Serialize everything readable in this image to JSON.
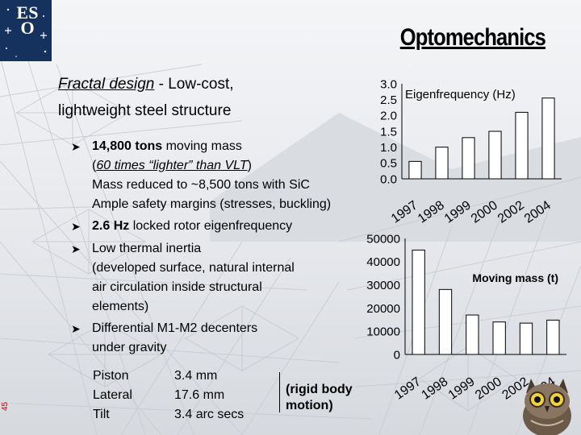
{
  "slide": {
    "title": "Optomechanics",
    "logo_text": "ES O",
    "slide_number": "45"
  },
  "intro": {
    "heading": "Fractal design",
    "heading_rest": " - Low-cost,",
    "line2": "lightweight steel structure"
  },
  "bullets": [
    {
      "bold": "14,800 tons",
      "text": " moving mass",
      "sub1_open": "(",
      "sub1_link": "60 times “lighter” than VLT",
      "sub1_close": ")",
      "sub2": "Mass reduced to ~8,500 tons with SiC",
      "sub3": "Ample safety margins (stresses, buckling)"
    },
    {
      "bold": "2.6 Hz",
      "text": " locked rotor eigenfrequency"
    },
    {
      "text": "Low thermal inertia",
      "sub1": "(developed surface, natural internal",
      "sub2": "air circulation inside structural",
      "sub3": "elements)"
    },
    {
      "text": "Differential M1-M2 decenters",
      "sub1": "under gravity"
    }
  ],
  "decenters": {
    "labels": [
      "Piston",
      "Lateral",
      "Tilt"
    ],
    "values": [
      "3.4 mm",
      "17.6 mm",
      "3.4 arc secs"
    ],
    "note": "(rigid body motion)",
    "note_line1": "(rigid body",
    "note_line2": "motion)"
  },
  "chart_data": [
    {
      "type": "bar",
      "title": "Eigenfrequency (Hz)",
      "categories": [
        "1997",
        "1998",
        "1999",
        "2000",
        "2002",
        "2004"
      ],
      "values": [
        0.55,
        1.0,
        1.3,
        1.5,
        2.1,
        2.55
      ],
      "ylim": [
        0,
        3.0
      ],
      "yticks": [
        "3.0",
        "2.5",
        "2.0",
        "1.5",
        "1.0",
        "0.5",
        "0.0"
      ],
      "xlabel": "",
      "ylabel": "",
      "grid": false,
      "legend": "none"
    },
    {
      "type": "bar",
      "title": "Moving mass (t)",
      "categories": [
        "1997",
        "1998",
        "1999",
        "2000",
        "2002",
        "2004"
      ],
      "values": [
        45000,
        28000,
        17000,
        14000,
        13500,
        14800
      ],
      "ylim": [
        0,
        50000
      ],
      "yticks": [
        "50000",
        "40000",
        "30000",
        "20000",
        "10000",
        "0"
      ],
      "xlabel": "",
      "ylabel": "",
      "grid": false,
      "legend": "none"
    }
  ],
  "colors": {
    "bar_fill": "#ffffff",
    "bar_stroke": "#000000",
    "logo_bg": "#15325e",
    "slide_number": "#c00000"
  },
  "icons": {
    "logo": "eso-logo",
    "bullet": "arrow-bullet-icon",
    "owl": "owl-mascot-icon"
  }
}
